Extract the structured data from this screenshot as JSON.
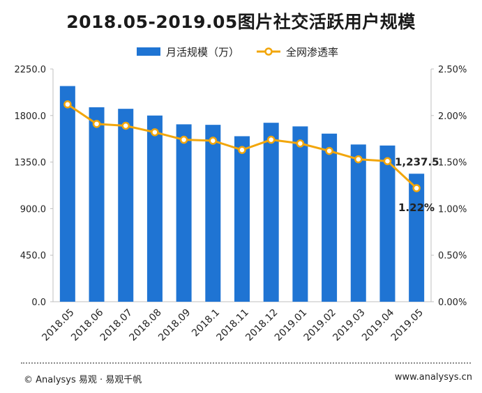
{
  "title": "2018.05-2019.05图片社交活跃用户规模",
  "footer": {
    "left": "© Analysys 易观 · 易观千帆",
    "right": "www.analysys.cn"
  },
  "colors": {
    "bar": "#1f74d3",
    "line": "#f2a60b",
    "axis": "#bfbfbf",
    "text": "#222222"
  },
  "chart_data": {
    "type": "bar+line",
    "categories": [
      "2018.05",
      "2018.06",
      "2018.07",
      "2018.08",
      "2018.09",
      "2018.1",
      "2018.11",
      "2018.12",
      "2019.01",
      "2019.02",
      "2019.03",
      "2019.04",
      "2019.05"
    ],
    "series": [
      {
        "name": "月活规模（万）",
        "type": "bar",
        "axis": "left",
        "values": [
          2085,
          1880,
          1865,
          1800,
          1715,
          1710,
          1600,
          1730,
          1695,
          1625,
          1520,
          1510,
          1237.5
        ]
      },
      {
        "name": "全网渗透率",
        "type": "line",
        "axis": "right",
        "values": [
          2.12,
          1.91,
          1.89,
          1.82,
          1.74,
          1.73,
          1.63,
          1.74,
          1.7,
          1.62,
          1.53,
          1.51,
          1.22
        ]
      }
    ],
    "y_left": {
      "min": 0,
      "max": 2250,
      "ticks": [
        "0.0",
        "450.0",
        "900.0",
        "1350.0",
        "1800.0",
        "2250.0"
      ]
    },
    "y_right": {
      "min": 0,
      "max": 2.5,
      "ticks": [
        "0.00%",
        "0.50%",
        "1.00%",
        "1.50%",
        "2.00%",
        "2.50%"
      ]
    },
    "annotations": {
      "last_bar": "1,237.5",
      "last_point": "1.22%"
    },
    "legend_position": "top",
    "grid": false
  }
}
